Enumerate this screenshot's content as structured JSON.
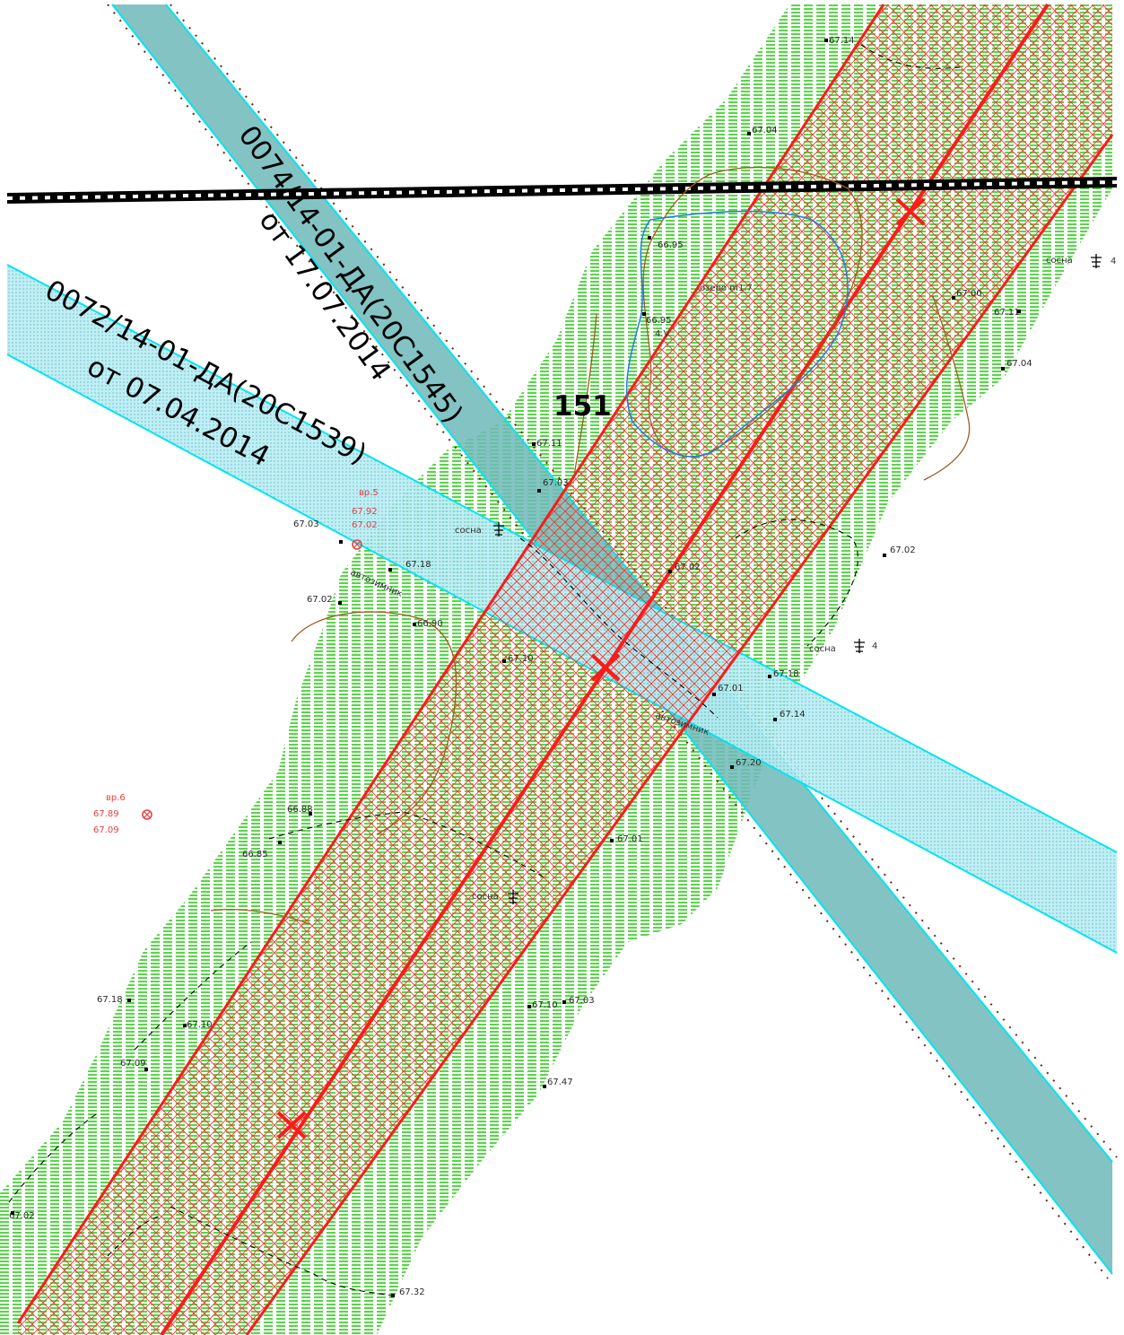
{
  "map": {
    "plot_number": "151",
    "permit_a": {
      "line1": "0074/14-01-ДА(20С1545)",
      "line2": "от 17.07.2014"
    },
    "permit_b": {
      "line1": "0072/14-01-ДА(20С1539)",
      "line2": "от 07.04.2014"
    },
    "road_label_1": "автозимник",
    "road_label_2": "автозимник",
    "benchmark_1": {
      "name": "вр.5",
      "h1": "67.92",
      "h2": "67.02"
    },
    "benchmark_2": {
      "name": "вр.6",
      "h1": "67.89",
      "h2": "67.09"
    },
    "lake_label": "озеро m1.7",
    "lake_depth": "4.V",
    "tree_labels": [
      "сосна",
      "сосна",
      "сосна",
      "сосна"
    ],
    "tree_heights": [
      "4",
      "4"
    ],
    "elevations": [
      "67.14",
      "67.04",
      "66.95",
      "66.95",
      "67.11",
      "67.04",
      "67.00",
      "67.11",
      "67.03",
      "67.02",
      "67.03",
      "67.18",
      "67.02",
      "66.90",
      "67.18",
      "67.01",
      "67.14",
      "67.20",
      "66.88",
      "66.85",
      "67.01",
      "67.18",
      "67.10",
      "67.09",
      "67.03",
      "67.10",
      "67.47",
      "67.32",
      "67.02",
      "67.10",
      "67.02"
    ],
    "colors": {
      "vegetation": "#2ecc1a",
      "corridor": "#ff1a1a",
      "permit_a_fill": "#6fb8b8",
      "permit_b_fill": "#b8ecf2",
      "permit_edge": "#00e5f0",
      "road": "#000000",
      "contour": "#a35a1f",
      "water": "#1e7de6"
    },
    "icons": [
      "railway-line",
      "pine-tree-icon",
      "benchmark-icon",
      "survey-point-icon"
    ]
  }
}
